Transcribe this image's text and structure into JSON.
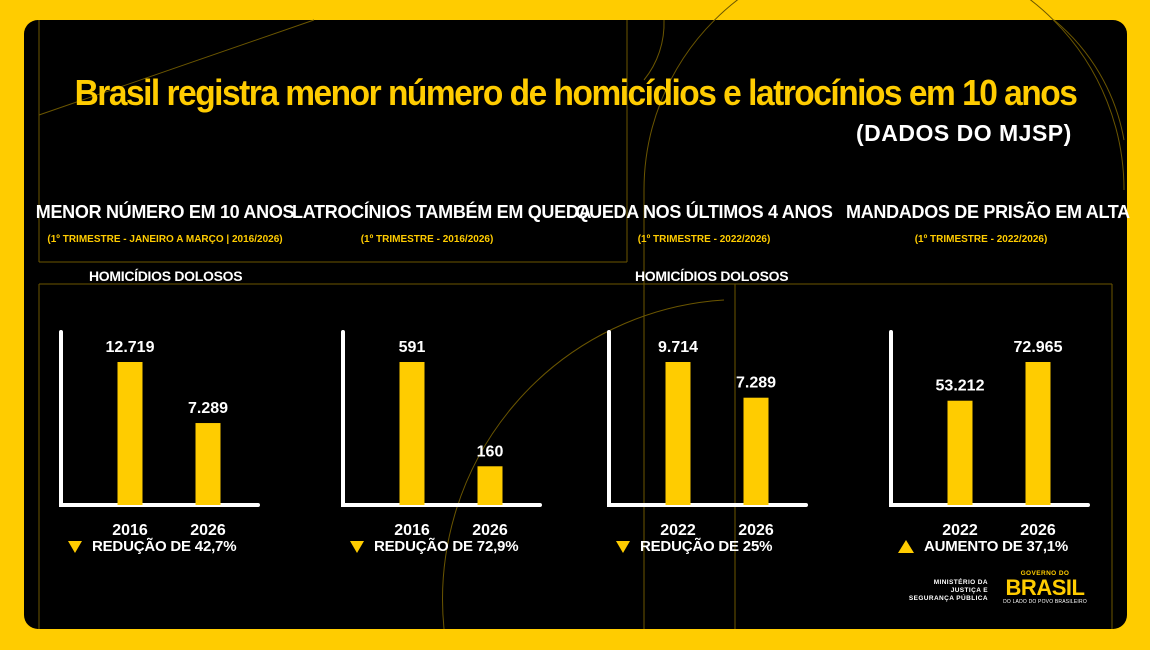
{
  "header": {
    "title": "Brasil registra menor número de homicídios e latrocínios em 10 anos",
    "subtitle": "(DADOS DO MJSP)"
  },
  "sections": [
    {
      "title": "MENOR NÚMERO EM 10 ANOS",
      "sub": "(1º TRIMESTRE - JANEIRO A MARÇO | 2016/2026)",
      "series_label": "HOMICÍDIOS DOLOSOS"
    },
    {
      "title": "LATROCÍNIOS TAMBÉM EM QUEDA",
      "sub": "(1º TRIMESTRE - 2016/2026)"
    },
    {
      "title": "QUEDA NOS ÚLTIMOS 4 ANOS",
      "sub": "(1º TRIMESTRE - 2022/2026)",
      "series_label": "HOMICÍDIOS DOLOSOS"
    },
    {
      "title": "MANDADOS DE PRISÃO EM ALTA",
      "sub": "(1º TRIMESTRE - 2022/2026)"
    }
  ],
  "colors": {
    "accent": "#FFCC00",
    "background": "#000000",
    "text": "#FFFFFF"
  },
  "chart_data": [
    {
      "type": "bar",
      "categories": [
        "2016",
        "2026"
      ],
      "values": [
        12719,
        7289
      ],
      "labels": [
        "12.719",
        "7.289"
      ],
      "series_name": "HOMICÍDIOS DOLOSOS",
      "change": {
        "direction": "down",
        "text": "REDUÇÃO DE 42,7%"
      }
    },
    {
      "type": "bar",
      "categories": [
        "2016",
        "2026"
      ],
      "values": [
        591,
        160
      ],
      "labels": [
        "591",
        "160"
      ],
      "change": {
        "direction": "down",
        "text": "REDUÇÃO DE 72,9%"
      }
    },
    {
      "type": "bar",
      "categories": [
        "2022",
        "2026"
      ],
      "values": [
        9714,
        7289
      ],
      "labels": [
        "9.714",
        "7.289"
      ],
      "series_name": "HOMICÍDIOS DOLOSOS",
      "change": {
        "direction": "down",
        "text": "REDUÇÃO DE 25%"
      }
    },
    {
      "type": "bar",
      "categories": [
        "2022",
        "2026"
      ],
      "values": [
        53212,
        72965
      ],
      "labels": [
        "53.212",
        "72.965"
      ],
      "change": {
        "direction": "up",
        "text": "AUMENTO DE 37,1%"
      }
    }
  ],
  "footer": {
    "mjsp_lines": [
      "MINISTÉRIO DA",
      "JUSTIÇA E",
      "SEGURANÇA PÚBLICA"
    ],
    "gov_top": "GOVERNO DO",
    "gov_main": "BRASIL",
    "gov_bottom": "DO LADO DO POVO BRASILEIRO"
  }
}
